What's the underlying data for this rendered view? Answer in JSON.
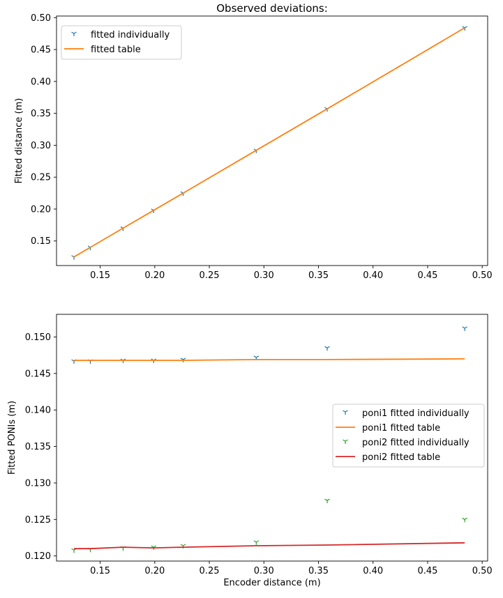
{
  "colors": {
    "blue": "#1f77b4",
    "orange": "#ff7f0e",
    "green": "#2ca02c",
    "red": "#d62728"
  },
  "chart_data": [
    {
      "type": "line",
      "title": "Observed deviations:",
      "xlabel": "",
      "ylabel": "Fitted distance (m)",
      "xlim": [
        0.11,
        0.505
      ],
      "ylim": [
        0.1115,
        0.5025
      ],
      "xticks": [
        0.15,
        0.2,
        0.25,
        0.3,
        0.35,
        0.4,
        0.45,
        0.5
      ],
      "xtick_labels": [
        "0.15",
        "0.20",
        "0.25",
        "0.30",
        "0.35",
        "0.40",
        "0.45",
        "0.50"
      ],
      "yticks": [
        0.15,
        0.2,
        0.25,
        0.3,
        0.35,
        0.4,
        0.45,
        0.5
      ],
      "ytick_labels": [
        "0.15",
        "0.20",
        "0.25",
        "0.30",
        "0.35",
        "0.40",
        "0.45",
        "0.50"
      ],
      "grid": false,
      "legend_position": "upper-left",
      "series": [
        {
          "name": "fitted individually",
          "kind": "scatter",
          "color": "#1f77b4",
          "x": [
            0.126,
            0.141,
            0.171,
            0.199,
            0.226,
            0.293,
            0.358,
            0.484
          ],
          "y": [
            0.125,
            0.14,
            0.17,
            0.198,
            0.225,
            0.292,
            0.357,
            0.484
          ]
        },
        {
          "name": "fitted table",
          "kind": "line",
          "color": "#ff7f0e",
          "x": [
            0.126,
            0.141,
            0.171,
            0.199,
            0.226,
            0.293,
            0.358,
            0.484
          ],
          "y": [
            0.125,
            0.14,
            0.17,
            0.198,
            0.225,
            0.292,
            0.357,
            0.484
          ]
        }
      ]
    },
    {
      "type": "line",
      "title": "",
      "xlabel": "Encoder distance (m)",
      "ylabel": "Fitted PONIs (m)",
      "xlim": [
        0.11,
        0.505
      ],
      "ylim": [
        0.1193,
        0.1531
      ],
      "xticks": [
        0.15,
        0.2,
        0.25,
        0.3,
        0.35,
        0.4,
        0.45,
        0.5
      ],
      "xtick_labels": [
        "0.15",
        "0.20",
        "0.25",
        "0.30",
        "0.35",
        "0.40",
        "0.45",
        "0.50"
      ],
      "yticks": [
        0.12,
        0.125,
        0.13,
        0.135,
        0.14,
        0.145,
        0.15
      ],
      "ytick_labels": [
        "0.120",
        "0.125",
        "0.130",
        "0.135",
        "0.140",
        "0.145",
        "0.150"
      ],
      "grid": false,
      "legend_position": "center-right",
      "series": [
        {
          "name": "poni1 fitted individually",
          "kind": "scatter",
          "color": "#1f77b4",
          "x": [
            0.126,
            0.141,
            0.171,
            0.199,
            0.226,
            0.293,
            0.358,
            0.484
          ],
          "y": [
            0.1467,
            0.1467,
            0.1468,
            0.1468,
            0.1469,
            0.1472,
            0.1485,
            0.1512
          ]
        },
        {
          "name": "poni1 fitted table",
          "kind": "line",
          "color": "#ff7f0e",
          "x": [
            0.126,
            0.141,
            0.171,
            0.199,
            0.226,
            0.293,
            0.358,
            0.484
          ],
          "y": [
            0.1468,
            0.1468,
            0.1468,
            0.1468,
            0.1468,
            0.1469,
            0.1469,
            0.147
          ]
        },
        {
          "name": "poni2 fitted individually",
          "kind": "scatter",
          "color": "#2ca02c",
          "x": [
            0.126,
            0.141,
            0.171,
            0.199,
            0.226,
            0.293,
            0.358,
            0.484
          ],
          "y": [
            0.1208,
            0.1209,
            0.1211,
            0.1212,
            0.1214,
            0.1219,
            0.1276,
            0.125
          ]
        },
        {
          "name": "poni2 fitted table",
          "kind": "line",
          "color": "#d62728",
          "x": [
            0.126,
            0.141,
            0.171,
            0.199,
            0.226,
            0.293,
            0.358,
            0.484
          ],
          "y": [
            0.121,
            0.121,
            0.1212,
            0.1211,
            0.1212,
            0.1214,
            0.1215,
            0.1218
          ]
        }
      ]
    }
  ]
}
